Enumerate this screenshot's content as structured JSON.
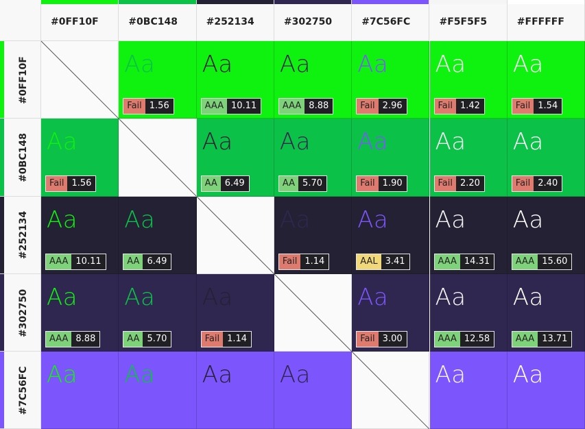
{
  "sample_text": "Aa",
  "rating_colors": [
    {
      "rating": "Fail",
      "color": "#de7b6e"
    },
    {
      "rating": "AA",
      "color": "#7ed27a"
    },
    {
      "rating": "AAA",
      "color": "#7ed27a"
    },
    {
      "rating": "AAL",
      "color": "#f1d97a"
    }
  ],
  "columns": [
    "#0FF10F",
    "#0BC148",
    "#252134",
    "#302750",
    "#7C56FC",
    "#F5F5F5",
    "#FFFFFF"
  ],
  "rows": [
    {
      "label": "#0FF10F",
      "cells": [
        null,
        {
          "rating": "Fail",
          "ratio": "1.56"
        },
        {
          "rating": "AAA",
          "ratio": "10.11"
        },
        {
          "rating": "AAA",
          "ratio": "8.88"
        },
        {
          "rating": "Fail",
          "ratio": "2.96"
        },
        {
          "rating": "Fail",
          "ratio": "1.42"
        },
        {
          "rating": "Fail",
          "ratio": "1.54"
        }
      ]
    },
    {
      "label": "#0BC148",
      "cells": [
        {
          "rating": "Fail",
          "ratio": "1.56"
        },
        null,
        {
          "rating": "AA",
          "ratio": "6.49"
        },
        {
          "rating": "AA",
          "ratio": "5.70"
        },
        {
          "rating": "Fail",
          "ratio": "1.90"
        },
        {
          "rating": "Fail",
          "ratio": "2.20"
        },
        {
          "rating": "Fail",
          "ratio": "2.40"
        }
      ]
    },
    {
      "label": "#252134",
      "cells": [
        {
          "rating": "AAA",
          "ratio": "10.11"
        },
        {
          "rating": "AA",
          "ratio": "6.49"
        },
        null,
        {
          "rating": "Fail",
          "ratio": "1.14"
        },
        {
          "rating": "AAL",
          "ratio": "3.41"
        },
        {
          "rating": "AAA",
          "ratio": "14.31"
        },
        {
          "rating": "AAA",
          "ratio": "15.60"
        }
      ]
    },
    {
      "label": "#302750",
      "cells": [
        {
          "rating": "AAA",
          "ratio": "8.88"
        },
        {
          "rating": "AA",
          "ratio": "5.70"
        },
        {
          "rating": "Fail",
          "ratio": "1.14"
        },
        null,
        {
          "rating": "Fail",
          "ratio": "3.00"
        },
        {
          "rating": "AAA",
          "ratio": "12.58"
        },
        {
          "rating": "AAA",
          "ratio": "13.71"
        }
      ]
    },
    {
      "label": "#7C56FC",
      "cells": [
        null,
        null,
        null,
        null,
        null,
        null,
        null
      ]
    }
  ]
}
